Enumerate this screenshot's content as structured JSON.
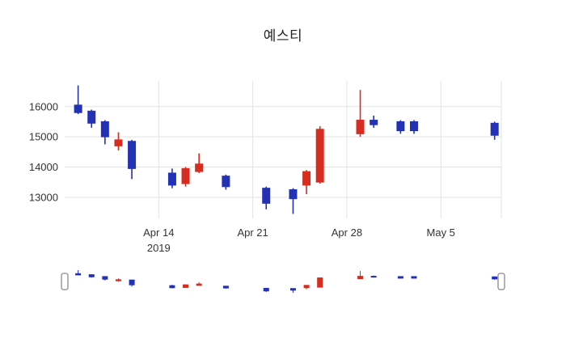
{
  "chart_data": {
    "type": "candlestick",
    "title": "예스티",
    "xlabel": "",
    "ylabel": "",
    "up_color": "#d62d20",
    "down_color": "#2331b5",
    "grid_color": "#e3e3e3",
    "axis_label_color": "#333333",
    "x_range": [
      "2019-04-07T00",
      "2019-05-09T12"
    ],
    "y_range": [
      12300,
      16850
    ],
    "y_ticks": [
      13000,
      14000,
      15000,
      16000
    ],
    "x_ticks": [
      {
        "date": "2019-04-14",
        "label": "Apr 14",
        "sublabel": "2019"
      },
      {
        "date": "2019-04-21",
        "label": "Apr 21",
        "sublabel": ""
      },
      {
        "date": "2019-04-28",
        "label": "Apr 28",
        "sublabel": ""
      },
      {
        "date": "2019-05-05",
        "label": "May 5",
        "sublabel": ""
      }
    ],
    "candles": [
      {
        "date": "2019-04-08",
        "open": 16050,
        "high": 16700,
        "low": 15750,
        "close": 15800
      },
      {
        "date": "2019-04-09",
        "open": 15850,
        "high": 15900,
        "low": 15300,
        "close": 15450
      },
      {
        "date": "2019-04-10",
        "open": 15500,
        "high": 15550,
        "low": 14750,
        "close": 15000
      },
      {
        "date": "2019-04-11",
        "open": 14700,
        "high": 15150,
        "low": 14550,
        "close": 14900
      },
      {
        "date": "2019-04-12",
        "open": 14850,
        "high": 14900,
        "low": 13600,
        "close": 13950
      },
      {
        "date": "2019-04-15",
        "open": 13800,
        "high": 13950,
        "low": 13300,
        "close": 13400
      },
      {
        "date": "2019-04-16",
        "open": 13450,
        "high": 14000,
        "low": 13350,
        "close": 13950
      },
      {
        "date": "2019-04-17",
        "open": 13850,
        "high": 14450,
        "low": 13800,
        "close": 14100
      },
      {
        "date": "2019-04-19",
        "open": 13700,
        "high": 13750,
        "low": 13250,
        "close": 13350
      },
      {
        "date": "2019-04-22",
        "open": 13300,
        "high": 13350,
        "low": 12600,
        "close": 12800
      },
      {
        "date": "2019-04-24",
        "open": 13250,
        "high": 13300,
        "low": 12450,
        "close": 12950
      },
      {
        "date": "2019-04-25",
        "open": 13400,
        "high": 13900,
        "low": 13100,
        "close": 13850
      },
      {
        "date": "2019-04-26",
        "open": 13500,
        "high": 15350,
        "low": 13450,
        "close": 15250
      },
      {
        "date": "2019-04-29",
        "open": 15100,
        "high": 16550,
        "low": 15000,
        "close": 15550
      },
      {
        "date": "2019-04-30",
        "open": 15550,
        "high": 15700,
        "low": 15300,
        "close": 15400
      },
      {
        "date": "2019-05-02",
        "open": 15500,
        "high": 15550,
        "low": 15100,
        "close": 15200
      },
      {
        "date": "2019-05-03",
        "open": 15500,
        "high": 15550,
        "low": 15100,
        "close": 15200
      },
      {
        "date": "2019-05-09",
        "open": 15450,
        "high": 15500,
        "low": 14900,
        "close": 15050
      }
    ],
    "range_slider": {
      "present": true,
      "handle_fill": "#ffffff",
      "handle_stroke": "#8a8a8a"
    }
  }
}
